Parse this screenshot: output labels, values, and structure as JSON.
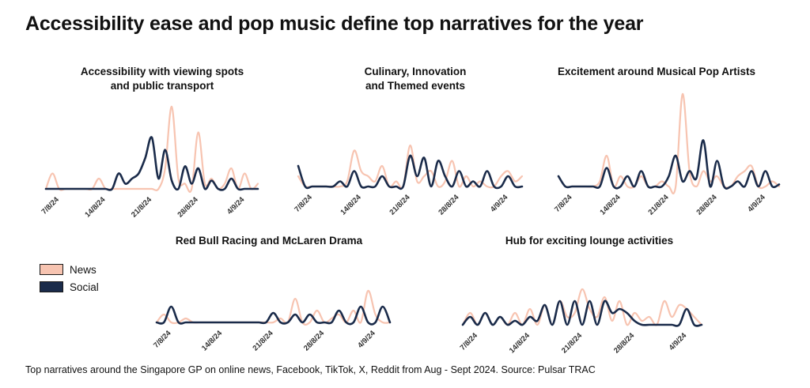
{
  "title": "Accessibility ease and pop music define top narratives for the year",
  "footer": "Top narratives around the Singapore GP on online news, Facebook, TikTok, X, Reddit from Aug - Sept 2024. Source: Pulsar TRAC",
  "legend": [
    {
      "label": "News",
      "color": "#f7c4b1"
    },
    {
      "label": "Social",
      "color": "#1a2b4a"
    }
  ],
  "chart_data": [
    {
      "type": "line",
      "title_lines": [
        "Accessibility with viewing spots",
        "and public transport"
      ],
      "x": [
        "2024-08-05",
        "2024-08-06",
        "2024-08-07",
        "2024-08-08",
        "2024-08-09",
        "2024-08-10",
        "2024-08-11",
        "2024-08-12",
        "2024-08-13",
        "2024-08-14",
        "2024-08-15",
        "2024-08-16",
        "2024-08-17",
        "2024-08-18",
        "2024-08-19",
        "2024-08-20",
        "2024-08-21",
        "2024-08-22",
        "2024-08-23",
        "2024-08-24",
        "2024-08-25",
        "2024-08-26",
        "2024-08-27",
        "2024-08-28",
        "2024-08-29",
        "2024-08-30",
        "2024-08-31",
        "2024-09-01",
        "2024-09-02",
        "2024-09-03",
        "2024-09-04",
        "2024-09-05",
        "2024-09-06"
      ],
      "xticks": [
        "7/8/24",
        "14/8/24",
        "21/8/24",
        "28/8/24",
        "4/9/24"
      ],
      "series": [
        {
          "name": "News",
          "values": [
            0,
            15,
            0,
            0,
            0,
            0,
            0,
            0,
            10,
            0,
            0,
            0,
            0,
            0,
            0,
            0,
            0,
            0,
            20,
            80,
            10,
            5,
            0,
            55,
            5,
            10,
            0,
            5,
            20,
            0,
            15,
            0,
            5
          ]
        },
        {
          "name": "Social",
          "values": [
            0,
            0,
            0,
            0,
            0,
            0,
            0,
            0,
            0,
            0,
            0,
            15,
            5,
            10,
            15,
            30,
            50,
            10,
            38,
            8,
            0,
            22,
            5,
            20,
            0,
            8,
            0,
            0,
            10,
            0,
            0,
            0,
            0
          ]
        }
      ]
    },
    {
      "type": "line",
      "title_lines": [
        "Culinary, Innovation",
        "and Themed events"
      ],
      "x": [
        "2024-08-05",
        "2024-08-06",
        "2024-08-07",
        "2024-08-08",
        "2024-08-09",
        "2024-08-10",
        "2024-08-11",
        "2024-08-12",
        "2024-08-13",
        "2024-08-14",
        "2024-08-15",
        "2024-08-16",
        "2024-08-17",
        "2024-08-18",
        "2024-08-19",
        "2024-08-20",
        "2024-08-21",
        "2024-08-22",
        "2024-08-23",
        "2024-08-24",
        "2024-08-25",
        "2024-08-26",
        "2024-08-27",
        "2024-08-28",
        "2024-08-29",
        "2024-08-30",
        "2024-08-31",
        "2024-09-01",
        "2024-09-02",
        "2024-09-03",
        "2024-09-04",
        "2024-09-05",
        "2024-09-06"
      ],
      "xticks": [
        "7/8/24",
        "14/8/24",
        "21/8/24",
        "28/8/24",
        "4/9/24"
      ],
      "series": [
        {
          "name": "News",
          "values": [
            10,
            0,
            0,
            0,
            0,
            0,
            0,
            5,
            35,
            15,
            10,
            5,
            20,
            0,
            5,
            0,
            40,
            5,
            10,
            15,
            0,
            5,
            25,
            0,
            10,
            0,
            5,
            0,
            0,
            10,
            15,
            5,
            10
          ]
        },
        {
          "name": "Social",
          "values": [
            20,
            0,
            0,
            0,
            0,
            0,
            5,
            0,
            15,
            0,
            0,
            0,
            10,
            0,
            0,
            0,
            30,
            10,
            28,
            0,
            25,
            10,
            0,
            15,
            0,
            5,
            0,
            15,
            0,
            0,
            10,
            0,
            0
          ]
        }
      ]
    },
    {
      "type": "line",
      "title_lines": [
        "Excitement around Musical Pop Artists"
      ],
      "x": [
        "2024-08-05",
        "2024-08-06",
        "2024-08-07",
        "2024-08-08",
        "2024-08-09",
        "2024-08-10",
        "2024-08-11",
        "2024-08-12",
        "2024-08-13",
        "2024-08-14",
        "2024-08-15",
        "2024-08-16",
        "2024-08-17",
        "2024-08-18",
        "2024-08-19",
        "2024-08-20",
        "2024-08-21",
        "2024-08-22",
        "2024-08-23",
        "2024-08-24",
        "2024-08-25",
        "2024-08-26",
        "2024-08-27",
        "2024-08-28",
        "2024-08-29",
        "2024-08-30",
        "2024-08-31",
        "2024-09-01",
        "2024-09-02",
        "2024-09-03",
        "2024-09-04",
        "2024-09-05",
        "2024-09-06"
      ],
      "xticks": [
        "7/8/24",
        "14/8/24",
        "21/8/24",
        "28/8/24",
        "4/9/24"
      ],
      "series": [
        {
          "name": "News",
          "values": [
            10,
            0,
            0,
            0,
            0,
            0,
            5,
            30,
            0,
            10,
            0,
            0,
            10,
            0,
            0,
            5,
            0,
            0,
            90,
            15,
            0,
            15,
            5,
            10,
            0,
            0,
            10,
            15,
            20,
            0,
            0,
            5,
            0
          ]
        },
        {
          "name": "Social",
          "values": [
            10,
            0,
            0,
            0,
            0,
            0,
            0,
            18,
            0,
            0,
            10,
            0,
            15,
            0,
            0,
            0,
            10,
            30,
            5,
            15,
            8,
            45,
            0,
            25,
            0,
            0,
            5,
            0,
            15,
            0,
            15,
            0,
            2
          ]
        }
      ]
    },
    {
      "type": "line",
      "title_lines": [
        "Red Bull Racing and McLaren Drama"
      ],
      "x": [
        "2024-08-05",
        "2024-08-06",
        "2024-08-07",
        "2024-08-08",
        "2024-08-09",
        "2024-08-10",
        "2024-08-11",
        "2024-08-12",
        "2024-08-13",
        "2024-08-14",
        "2024-08-15",
        "2024-08-16",
        "2024-08-17",
        "2024-08-18",
        "2024-08-19",
        "2024-08-20",
        "2024-08-21",
        "2024-08-22",
        "2024-08-23",
        "2024-08-24",
        "2024-08-25",
        "2024-08-26",
        "2024-08-27",
        "2024-08-28",
        "2024-08-29",
        "2024-08-30",
        "2024-08-31",
        "2024-09-01",
        "2024-09-02",
        "2024-09-03",
        "2024-09-04",
        "2024-09-05",
        "2024-09-06"
      ],
      "xticks": [
        "7/8/24",
        "14/8/24",
        "21/8/24",
        "28/8/24",
        "4/9/24"
      ],
      "series": [
        {
          "name": "News",
          "values": [
            0,
            10,
            0,
            0,
            5,
            0,
            0,
            0,
            0,
            0,
            0,
            0,
            0,
            0,
            0,
            0,
            0,
            5,
            0,
            30,
            0,
            0,
            15,
            0,
            5,
            10,
            0,
            15,
            0,
            40,
            10,
            0,
            0
          ]
        },
        {
          "name": "Social",
          "values": [
            0,
            0,
            20,
            0,
            0,
            0,
            0,
            0,
            0,
            0,
            0,
            0,
            0,
            0,
            0,
            0,
            12,
            0,
            0,
            10,
            0,
            10,
            0,
            0,
            0,
            15,
            0,
            0,
            20,
            0,
            0,
            20,
            0
          ]
        }
      ]
    },
    {
      "type": "line",
      "title_lines": [
        "Hub for exciting lounge activities"
      ],
      "x": [
        "2024-08-05",
        "2024-08-06",
        "2024-08-07",
        "2024-08-08",
        "2024-08-09",
        "2024-08-10",
        "2024-08-11",
        "2024-08-12",
        "2024-08-13",
        "2024-08-14",
        "2024-08-15",
        "2024-08-16",
        "2024-08-17",
        "2024-08-18",
        "2024-08-19",
        "2024-08-20",
        "2024-08-21",
        "2024-08-22",
        "2024-08-23",
        "2024-08-24",
        "2024-08-25",
        "2024-08-26",
        "2024-08-27",
        "2024-08-28",
        "2024-08-29",
        "2024-08-30",
        "2024-08-31",
        "2024-09-01",
        "2024-09-02",
        "2024-09-03",
        "2024-09-04",
        "2024-09-05",
        "2024-09-06"
      ],
      "xticks": [
        "7/8/24",
        "14/8/24",
        "21/8/24",
        "28/8/24",
        "4/9/24"
      ],
      "series": [
        {
          "name": "News",
          "values": [
            0,
            15,
            0,
            15,
            0,
            10,
            0,
            15,
            0,
            20,
            0,
            25,
            0,
            30,
            10,
            15,
            45,
            20,
            10,
            35,
            5,
            30,
            0,
            15,
            5,
            10,
            0,
            30,
            10,
            25,
            20,
            10,
            0
          ]
        },
        {
          "name": "Social",
          "values": [
            0,
            10,
            0,
            15,
            0,
            10,
            0,
            5,
            0,
            10,
            5,
            25,
            0,
            30,
            0,
            30,
            0,
            30,
            0,
            30,
            15,
            20,
            15,
            5,
            0,
            0,
            0,
            0,
            0,
            0,
            20,
            0,
            0
          ]
        }
      ]
    }
  ]
}
